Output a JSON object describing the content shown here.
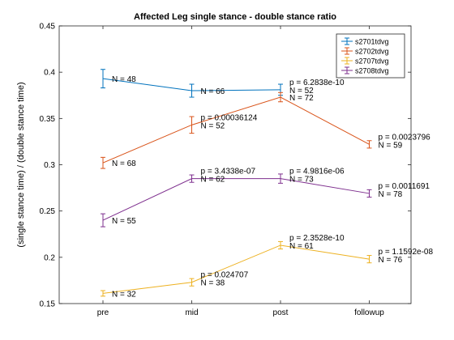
{
  "chart_data": {
    "type": "line",
    "title": "Affected Leg single stance - double stance ratio",
    "xlabel": "",
    "ylabel": "(single stance time) / (double stance time)",
    "categories": [
      "pre",
      "mid",
      "post",
      "followup"
    ],
    "ylim": [
      0.15,
      0.45
    ],
    "yticks": [
      0.15,
      0.2,
      0.25,
      0.3,
      0.35,
      0.4,
      0.45
    ],
    "ytick_labels": [
      "0.15",
      "0.2",
      "0.25",
      "0.3",
      "0.35",
      "0.4",
      "0.45"
    ],
    "grid": false,
    "legend_position": "top-right",
    "series": [
      {
        "name": "s2701tdvg",
        "color": "#0072BD",
        "values": [
          0.393,
          0.38,
          0.381,
          null
        ],
        "errors": [
          0.01,
          0.007,
          0.006,
          null
        ],
        "n_labels": [
          "N = 48",
          "N = 66",
          "N = 52",
          null
        ],
        "p_labels": [
          null,
          null,
          "p = 6.2838e-10",
          null
        ]
      },
      {
        "name": "s2702tdvg",
        "color": "#D95319",
        "values": [
          0.302,
          0.343,
          0.373,
          0.322
        ],
        "errors": [
          0.006,
          0.009,
          0.005,
          0.004
        ],
        "n_labels": [
          "N = 68",
          "N = 52",
          "N = 72",
          "N = 59"
        ],
        "p_labels": [
          null,
          "p = 0.00036124",
          null,
          "p = 0.0023796"
        ]
      },
      {
        "name": "s2707tdvg",
        "color": "#EDB120",
        "values": [
          0.161,
          0.173,
          0.213,
          0.198
        ],
        "errors": [
          0.003,
          0.004,
          0.004,
          0.004
        ],
        "n_labels": [
          "N = 32",
          "N = 38",
          "N = 61",
          "N = 76"
        ],
        "p_labels": [
          null,
          "p = 0.024707",
          "p = 2.3528e-10",
          "p = 1.1592e-08"
        ]
      },
      {
        "name": "s2708tdvg",
        "color": "#7E2F8E",
        "values": [
          0.24,
          0.285,
          0.285,
          0.269
        ],
        "errors": [
          0.007,
          0.004,
          0.005,
          0.004
        ],
        "n_labels": [
          "N = 55",
          "N = 62",
          "N = 73",
          "N = 78"
        ],
        "p_labels": [
          null,
          "p = 3.4338e-07",
          "p = 4.9816e-06",
          "p = 0.0011691"
        ]
      }
    ]
  }
}
